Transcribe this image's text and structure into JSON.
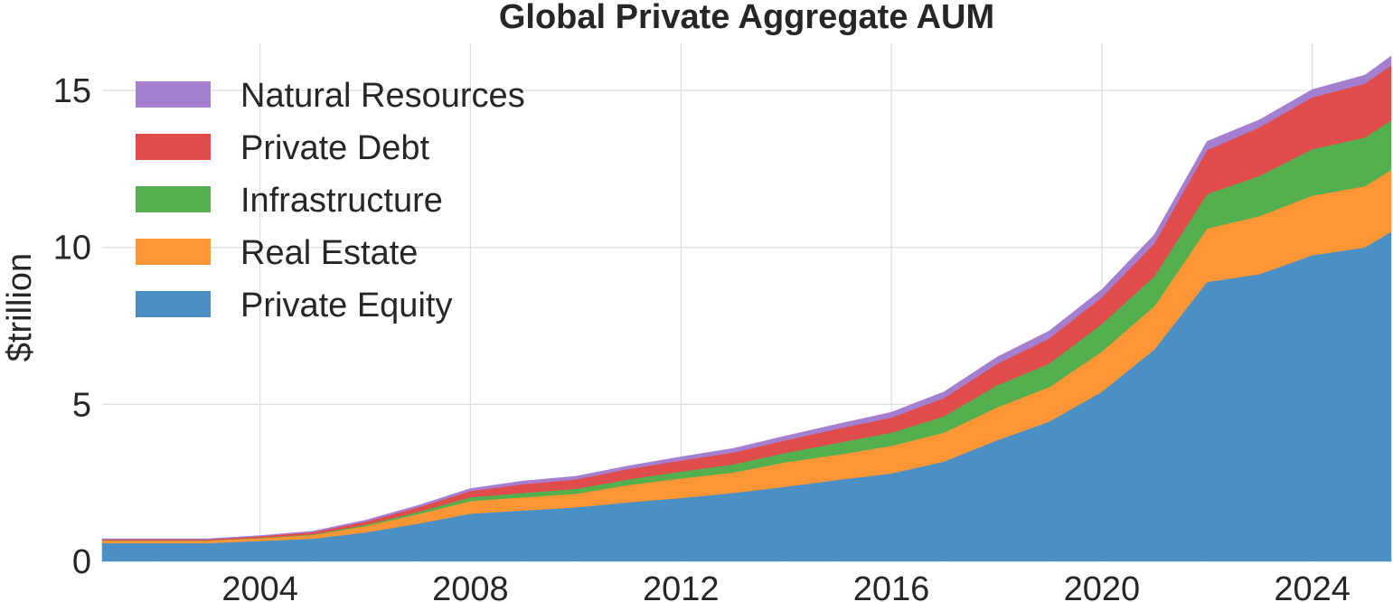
{
  "chart_data": {
    "type": "area",
    "stacked": true,
    "title": "Global Private Aggregate AUM",
    "xlabel": "",
    "ylabel": "$trillion",
    "x": [
      2001,
      2002,
      2003,
      2004,
      2005,
      2006,
      2007,
      2008,
      2009,
      2010,
      2011,
      2012,
      2013,
      2014,
      2015,
      2016,
      2017,
      2018,
      2019,
      2020,
      2021,
      2022,
      2023,
      2024,
      2025,
      2025.5
    ],
    "xlim": [
      2001,
      2025.5
    ],
    "ylim": [
      0,
      16.5
    ],
    "xticks": [
      2004,
      2008,
      2012,
      2016,
      2020,
      2024
    ],
    "yticks": [
      0,
      5,
      10,
      15
    ],
    "grid": true,
    "legend_position": "top-left",
    "series": [
      {
        "name": "Private Equity",
        "color": "#4a90c4",
        "values": [
          0.58,
          0.58,
          0.58,
          0.65,
          0.72,
          0.92,
          1.2,
          1.52,
          1.62,
          1.72,
          1.88,
          2.02,
          2.18,
          2.38,
          2.6,
          2.8,
          3.18,
          3.85,
          4.45,
          5.4,
          6.75,
          8.9,
          9.15,
          9.75,
          10.0,
          10.5
        ]
      },
      {
        "name": "Real Estate",
        "color": "#ff9636",
        "values": [
          0.08,
          0.08,
          0.08,
          0.09,
          0.12,
          0.2,
          0.3,
          0.4,
          0.42,
          0.43,
          0.55,
          0.62,
          0.65,
          0.78,
          0.8,
          0.88,
          0.92,
          1.05,
          1.1,
          1.28,
          1.38,
          1.7,
          1.85,
          1.9,
          1.95,
          1.97
        ]
      },
      {
        "name": "Infrastructure",
        "color": "#54b04f",
        "values": [
          0.01,
          0.01,
          0.01,
          0.01,
          0.02,
          0.04,
          0.07,
          0.12,
          0.14,
          0.16,
          0.18,
          0.22,
          0.26,
          0.3,
          0.38,
          0.42,
          0.52,
          0.7,
          0.75,
          0.88,
          0.95,
          1.1,
          1.28,
          1.48,
          1.55,
          1.58
        ]
      },
      {
        "name": "Private Debt",
        "color": "#e04c4c",
        "values": [
          0.03,
          0.03,
          0.03,
          0.05,
          0.07,
          0.1,
          0.15,
          0.2,
          0.28,
          0.3,
          0.33,
          0.35,
          0.38,
          0.4,
          0.45,
          0.48,
          0.58,
          0.68,
          0.8,
          0.85,
          1.05,
          1.4,
          1.55,
          1.65,
          1.72,
          1.75
        ]
      },
      {
        "name": "Natural Resources",
        "color": "#a57fcf",
        "values": [
          0.02,
          0.02,
          0.02,
          0.02,
          0.03,
          0.05,
          0.06,
          0.08,
          0.1,
          0.1,
          0.1,
          0.12,
          0.13,
          0.14,
          0.15,
          0.17,
          0.2,
          0.22,
          0.24,
          0.25,
          0.28,
          0.28,
          0.24,
          0.25,
          0.27,
          0.3
        ]
      }
    ]
  }
}
